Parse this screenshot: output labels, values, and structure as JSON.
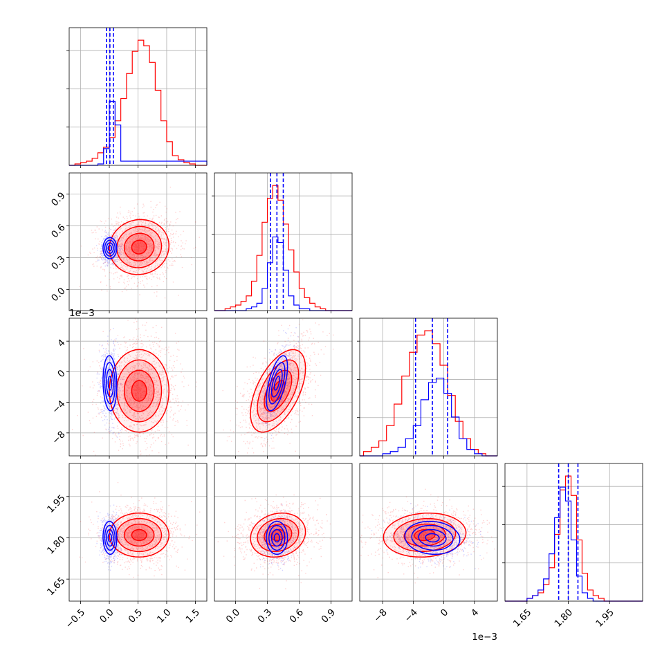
{
  "chart_data": {
    "type": "corner",
    "title": "",
    "colors": {
      "blue": "#0000ff",
      "red": "#ff0000",
      "grid": "#b0b0b0",
      "frame": "#000000"
    },
    "parameters": [
      {
        "index": 0,
        "range": [
          -0.7,
          1.7
        ],
        "ticks": [
          -0.5,
          0.0,
          0.5,
          1.0,
          1.5
        ],
        "tick_labels": [
          "−0.5",
          "0.0",
          "0.5",
          "1.0",
          "1.5"
        ],
        "offset_label": ""
      },
      {
        "index": 1,
        "range": [
          -0.2,
          1.1
        ],
        "ticks": [
          0.0,
          0.3,
          0.6,
          0.9
        ],
        "tick_labels": [
          "0.0",
          "0.3",
          "0.6",
          "0.9"
        ],
        "offset_label": ""
      },
      {
        "index": 2,
        "range": [
          -0.011,
          0.007
        ],
        "ticks": [
          -0.008,
          -0.004,
          0.0,
          0.004
        ],
        "tick_labels": [
          "−8",
          "−4",
          "0",
          "4"
        ],
        "offset_label": "1e−3"
      },
      {
        "index": 3,
        "range": [
          1.57,
          2.07
        ],
        "ticks": [
          1.65,
          1.8,
          1.95
        ],
        "tick_labels": [
          "1.65",
          "1.80",
          "1.95"
        ],
        "offset_label": ""
      }
    ],
    "offset_label_text": "1e−3",
    "series": [
      {
        "name": "",
        "color": "#0000ff",
        "mean": [
          0.01,
          0.39,
          -0.0015,
          1.8
        ],
        "std": [
          0.06,
          0.05,
          0.0018,
          0.03
        ],
        "quantiles": [
          [
            -0.05,
            0.01,
            0.07
          ],
          [
            0.33,
            0.39,
            0.45
          ],
          [
            -0.0037,
            -0.0015,
            0.0005
          ],
          [
            1.765,
            1.8,
            1.835
          ]
        ],
        "histograms": [
          {
            "edges": [
              -0.7,
              -0.6,
              -0.5,
              -0.4,
              -0.3,
              -0.2,
              -0.1,
              0.0,
              0.1,
              0.2,
              1.7
            ],
            "counts": [
              0,
              0,
              0,
              0,
              0,
              1,
              12,
              46,
              29,
              3,
              0
            ]
          },
          {
            "edges": [
              -0.2,
              -0.1,
              0.0,
              0.1,
              0.15,
              0.2,
              0.25,
              0.3,
              0.35,
              0.4,
              0.45,
              0.5,
              0.55,
              0.6,
              0.65,
              0.7,
              1.1
            ],
            "counts": [
              0,
              0,
              0,
              1,
              2,
              4,
              12,
              26,
              40,
              37,
              22,
              8,
              3,
              1,
              1,
              0
            ]
          },
          {
            "edges": [
              -0.011,
              -0.01,
              -0.009,
              -0.008,
              -0.007,
              -0.006,
              -0.005,
              -0.004,
              -0.003,
              -0.002,
              -0.001,
              0.0,
              0.001,
              0.002,
              0.003,
              0.004,
              0.005,
              0.007
            ],
            "counts": [
              0,
              0,
              0,
              1,
              2,
              4,
              8,
              14,
              26,
              34,
              36,
              29,
              18,
              8,
              3,
              1,
              0
            ]
          },
          {
            "edges": [
              1.57,
              1.65,
              1.67,
              1.69,
              1.71,
              1.73,
              1.75,
              1.77,
              1.79,
              1.81,
              1.83,
              1.85,
              1.87,
              1.89,
              1.91,
              2.07
            ],
            "counts": [
              0,
              1,
              2,
              4,
              8,
              17,
              30,
              41,
              36,
              22,
              9,
              3,
              1,
              0,
              0
            ]
          }
        ]
      },
      {
        "name": "",
        "color": "#ff0000",
        "mean": [
          0.52,
          0.4,
          -0.0025,
          1.81
        ],
        "std": [
          0.26,
          0.13,
          0.0027,
          0.04
        ],
        "quantiles": [],
        "histograms": [
          {
            "edges": [
              -0.7,
              -0.6,
              -0.5,
              -0.4,
              -0.3,
              -0.2,
              -0.1,
              0.0,
              0.1,
              0.2,
              0.3,
              0.4,
              0.5,
              0.6,
              0.7,
              0.8,
              0.9,
              1.0,
              1.1,
              1.2,
              1.3,
              1.4,
              1.5,
              1.6,
              1.7
            ],
            "counts": [
              0,
              1,
              2,
              3,
              5,
              9,
              13,
              20,
              32,
              48,
              66,
              82,
              90,
              86,
              74,
              54,
              32,
              17,
              7,
              4,
              2,
              1,
              0,
              0
            ]
          },
          {
            "edges": [
              -0.2,
              -0.1,
              -0.05,
              0.0,
              0.05,
              0.1,
              0.15,
              0.2,
              0.25,
              0.3,
              0.35,
              0.4,
              0.45,
              0.5,
              0.55,
              0.6,
              0.65,
              0.7,
              0.75,
              0.8,
              0.85,
              0.9,
              1.1
            ],
            "counts": [
              0,
              1,
              2,
              3,
              5,
              8,
              16,
              30,
              48,
              61,
              68,
              60,
              47,
              33,
              21,
              12,
              7,
              4,
              2,
              1,
              0,
              0
            ]
          },
          {
            "edges": [
              -0.011,
              -0.0105,
              -0.0095,
              -0.0085,
              -0.0075,
              -0.0065,
              -0.0055,
              -0.0045,
              -0.0035,
              -0.0025,
              -0.0015,
              -0.0005,
              0.0005,
              0.0015,
              0.0025,
              0.0035,
              0.0045,
              0.0055,
              0.007
            ],
            "counts": [
              0,
              2,
              4,
              7,
              14,
              24,
              37,
              48,
              56,
              58,
              52,
              42,
              28,
              16,
              8,
              3,
              1,
              0
            ]
          },
          {
            "edges": [
              1.57,
              1.65,
              1.67,
              1.69,
              1.71,
              1.73,
              1.75,
              1.77,
              1.79,
              1.81,
              1.83,
              1.85,
              1.87,
              1.89,
              1.91,
              1.93,
              2.07
            ],
            "counts": [
              0,
              1,
              2,
              3,
              6,
              12,
              24,
              40,
              45,
              38,
              22,
              10,
              4,
              2,
              1,
              0
            ]
          }
        ]
      }
    ],
    "pairs": [
      {
        "x": 0,
        "y": 1,
        "blue_rho": 0.0,
        "red_rho": 0.05
      },
      {
        "x": 0,
        "y": 2,
        "blue_rho": -0.1,
        "red_rho": 0.0
      },
      {
        "x": 1,
        "y": 2,
        "blue_rho": 0.6,
        "red_rho": 0.55
      },
      {
        "x": 0,
        "y": 3,
        "blue_rho": -0.05,
        "red_rho": 0.0
      },
      {
        "x": 1,
        "y": 3,
        "blue_rho": 0.0,
        "red_rho": 0.15
      },
      {
        "x": 2,
        "y": 3,
        "blue_rho": -0.1,
        "red_rho": 0.1
      }
    ],
    "grid": true,
    "legend": "none"
  }
}
